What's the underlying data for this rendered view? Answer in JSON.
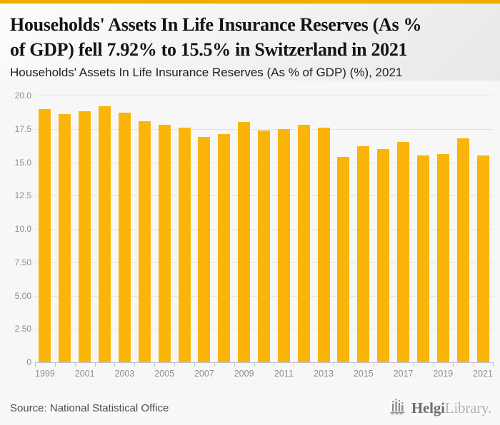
{
  "colors": {
    "accent_topbar": "#f0ad00",
    "bar": "#fab40a",
    "grid": "#e3e3e3",
    "axis": "#bcc5d4",
    "chart_background": "#f7f7f7"
  },
  "header": {
    "title": "Households' Assets In Life Insurance Reserves (As %\nof GDP) fell 7.92% to 15.5% in Switzerland in 2021",
    "subtitle": "Households' Assets In Life Insurance Reserves (As % of GDP) (%), 2021"
  },
  "chart_data": {
    "type": "bar",
    "title": "Households' Assets In Life Insurance Reserves (As % of GDP) (%), 2021",
    "x": [
      1999,
      2000,
      2001,
      2002,
      2003,
      2004,
      2005,
      2006,
      2007,
      2008,
      2009,
      2010,
      2011,
      2012,
      2013,
      2014,
      2015,
      2016,
      2017,
      2018,
      2019,
      2020,
      2021
    ],
    "values": [
      19.0,
      18.6,
      18.8,
      19.2,
      18.7,
      18.1,
      17.8,
      17.6,
      16.9,
      17.1,
      18.0,
      17.4,
      17.5,
      17.8,
      17.6,
      15.4,
      16.2,
      16.0,
      16.5,
      15.5,
      15.6,
      16.8,
      15.5
    ],
    "xlabel": "",
    "ylabel": "",
    "ylim": [
      0,
      20
    ],
    "yticks": {
      "values": [
        0,
        2.5,
        5,
        7.5,
        10,
        12.5,
        15,
        17.5,
        20
      ],
      "labels": [
        "0",
        "2.50",
        "5.00",
        "7.50",
        "10.0",
        "12.5",
        "15.0",
        "17.5",
        "20.0"
      ]
    },
    "xtick_labels": [
      "1999",
      "2001",
      "2003",
      "2005",
      "2007",
      "2009",
      "2011",
      "2013",
      "2015",
      "2017",
      "2019",
      "2021"
    ],
    "grid": true,
    "legend": "none"
  },
  "footer": {
    "source": "Source: National Statistical Office",
    "logo": {
      "icon": "bar-chart-logo-icon",
      "text_primary": "Helgi",
      "text_secondary": "Library."
    }
  }
}
